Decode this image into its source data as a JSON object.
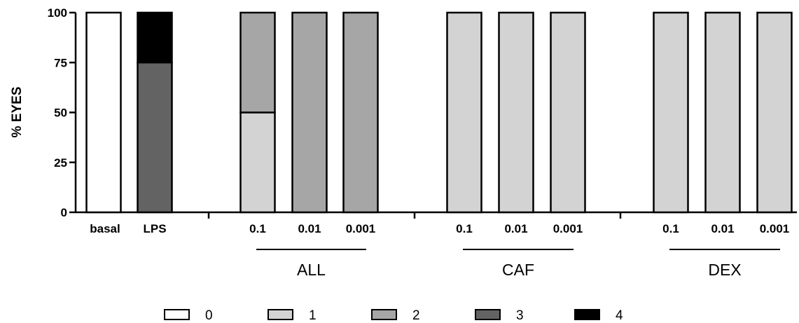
{
  "chart_data": {
    "type": "bar",
    "stacked": true,
    "ylabel": "% EYES",
    "ylim": [
      0,
      100
    ],
    "yticks": [
      "0",
      "25",
      "50",
      "75",
      "100"
    ],
    "categories": [
      "basal",
      "LPS",
      "0.1",
      "0.01",
      "0.001",
      "0.1",
      "0.01",
      "0.001",
      "0.1",
      "0.01",
      "0.001"
    ],
    "groups": [
      {
        "label": "ALL",
        "from": 2,
        "to": 4
      },
      {
        "label": "CAF",
        "from": 5,
        "to": 7
      },
      {
        "label": "DEX",
        "from": 8,
        "to": 10
      }
    ],
    "series": [
      {
        "name": "0",
        "color": "#ffffff",
        "values": [
          100,
          0,
          0,
          0,
          0,
          0,
          0,
          0,
          0,
          0,
          0
        ]
      },
      {
        "name": "1",
        "color": "#d3d3d3",
        "values": [
          0,
          0,
          50,
          0,
          0,
          100,
          100,
          100,
          100,
          100,
          100
        ]
      },
      {
        "name": "2",
        "color": "#a6a6a6",
        "values": [
          0,
          0,
          50,
          100,
          100,
          0,
          0,
          0,
          0,
          0,
          0
        ]
      },
      {
        "name": "3",
        "color": "#636363",
        "values": [
          0,
          75,
          0,
          0,
          0,
          0,
          0,
          0,
          0,
          0,
          0
        ]
      },
      {
        "name": "4",
        "color": "#000000",
        "values": [
          0,
          25,
          0,
          0,
          0,
          0,
          0,
          0,
          0,
          0,
          0
        ]
      }
    ],
    "legend": "bottom"
  }
}
